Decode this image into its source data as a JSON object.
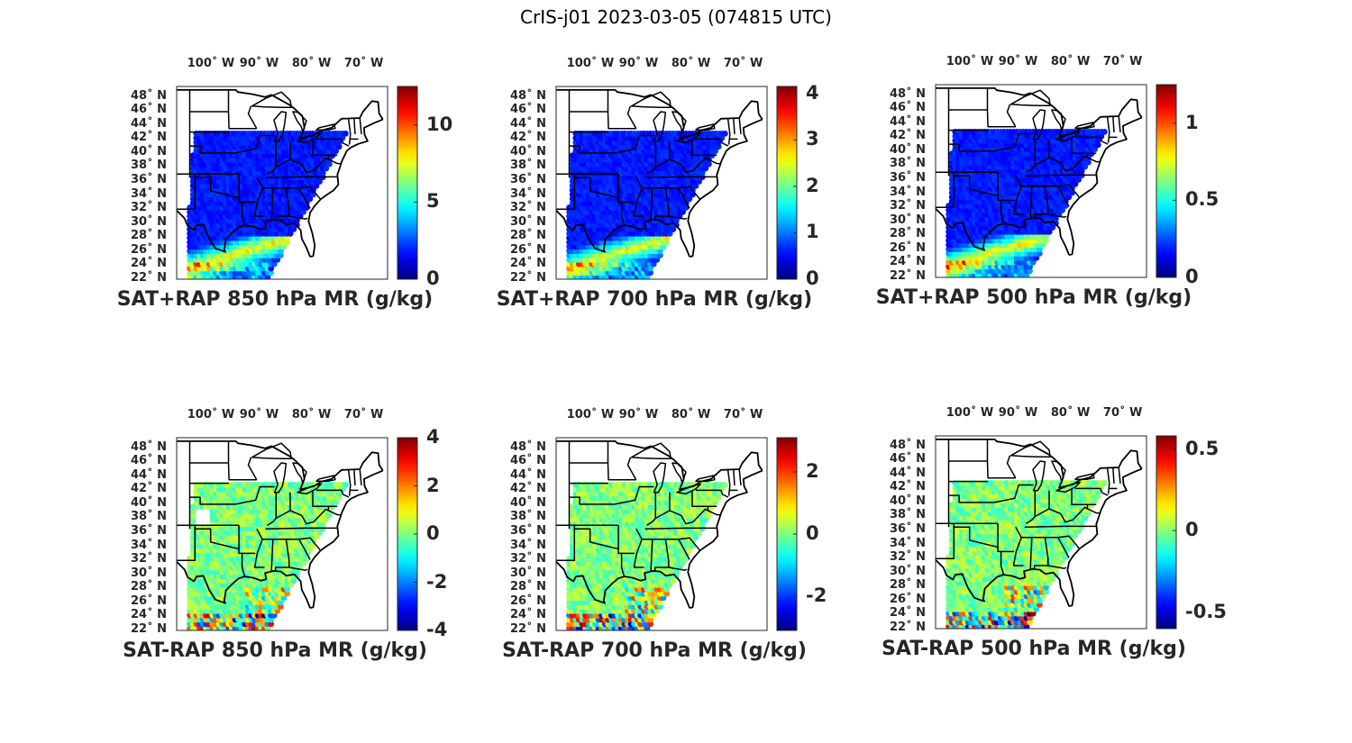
{
  "figure": {
    "title": "CrIS-j01 2023-03-05 (074815 UTC)"
  },
  "axes": {
    "lon_labels": [
      "100˚ W",
      "90˚ W",
      "80˚ W",
      "70˚ W"
    ],
    "lon_values": [
      -100,
      -90,
      -80,
      -70
    ],
    "lat_labels": [
      "48˚ N",
      "46˚ N",
      "44˚ N",
      "42˚ N",
      "40˚ N",
      "38˚ N",
      "36˚ N",
      "34˚ N",
      "32˚ N",
      "30˚ N",
      "28˚ N",
      "26˚ N",
      "24˚ N",
      "22˚ N"
    ],
    "lat_values": [
      48,
      46,
      44,
      42,
      40,
      38,
      36,
      34,
      32,
      30,
      28,
      26,
      24,
      22
    ],
    "colormap": "jet"
  },
  "panels": [
    {
      "title": "SAT+RAP 850 hPa MR (g/kg)",
      "clim": [
        0,
        12.5
      ],
      "cbar_ticks": [
        0,
        5,
        10
      ],
      "cbar_tick_labels": [
        "0",
        "5",
        "10"
      ],
      "field": "total"
    },
    {
      "title": "SAT+RAP 700 hPa MR (g/kg)",
      "clim": [
        0,
        4.15
      ],
      "cbar_ticks": [
        0,
        1,
        2,
        3,
        4
      ],
      "cbar_tick_labels": [
        "0",
        "1",
        "2",
        "3",
        "4"
      ],
      "field": "total"
    },
    {
      "title": "SAT+RAP 500 hPa MR (g/kg)",
      "clim": [
        0,
        1.25
      ],
      "cbar_ticks": [
        0,
        0.5,
        1
      ],
      "cbar_tick_labels": [
        "0",
        "0.5",
        "1"
      ],
      "field": "total"
    },
    {
      "title": "SAT-RAP 850 hPa MR (g/kg)",
      "clim": [
        -4,
        4
      ],
      "cbar_ticks": [
        -4,
        -2,
        0,
        2,
        4
      ],
      "cbar_tick_labels": [
        "-4",
        "-2",
        "0",
        "2",
        "4"
      ],
      "field": "diff"
    },
    {
      "title": "SAT-RAP 700 hPa MR (g/kg)",
      "clim": [
        -3.1,
        3.1
      ],
      "cbar_ticks": [
        -2,
        0,
        2
      ],
      "cbar_tick_labels": [
        "-2",
        "0",
        "2"
      ],
      "field": "diff"
    },
    {
      "title": "SAT-RAP 500 hPa MR (g/kg)",
      "clim": [
        -0.6,
        0.58
      ],
      "cbar_ticks": [
        -0.5,
        0,
        0.5
      ],
      "cbar_tick_labels": [
        "-0.5",
        "0",
        "0.5"
      ],
      "field": "diff"
    }
  ]
}
